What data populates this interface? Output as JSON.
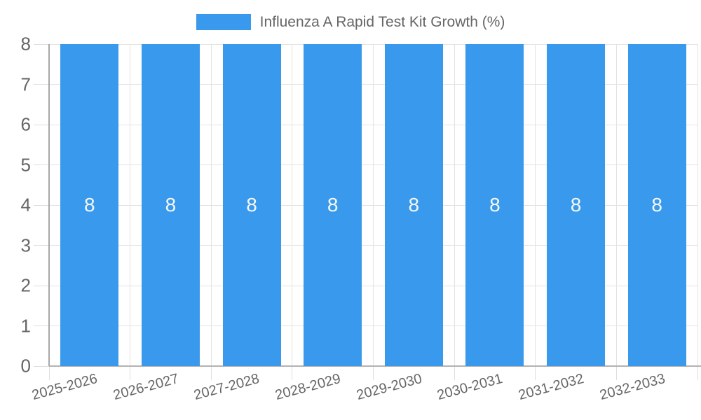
{
  "legend": {
    "label": "Influenza A Rapid Test Kit Growth (%)"
  },
  "colors": {
    "bar": "#3999ec",
    "grid": "#e3e3e3",
    "tick": "#dedede",
    "axis_y": "#a8a8a8",
    "axis_x": "#b3b3b3",
    "text": "#666666",
    "data_label": "#f7f7f7",
    "background": "#ffffff"
  },
  "chart_data": {
    "type": "bar",
    "title": "Influenza A Rapid Test Kit Growth (%)",
    "categories": [
      "2025-2026",
      "2026-2027",
      "2027-2028",
      "2028-2029",
      "2029-2030",
      "2030-2031",
      "2031-2032",
      "2032-2033"
    ],
    "series": [
      {
        "name": "Influenza A Rapid Test Kit Growth (%)",
        "values": [
          8,
          8,
          8,
          8,
          8,
          8,
          8,
          8
        ]
      }
    ],
    "data_labels": [
      "8",
      "8",
      "8",
      "8",
      "8",
      "8",
      "8",
      "8"
    ],
    "xlabel": "",
    "ylabel": "",
    "ylim": [
      0,
      8
    ],
    "y_ticks": [
      0,
      1,
      2,
      3,
      4,
      5,
      6,
      7,
      8
    ],
    "grid": true,
    "legend_position": "top",
    "x_tick_rotation_deg": -15,
    "data_label_position": "center"
  }
}
